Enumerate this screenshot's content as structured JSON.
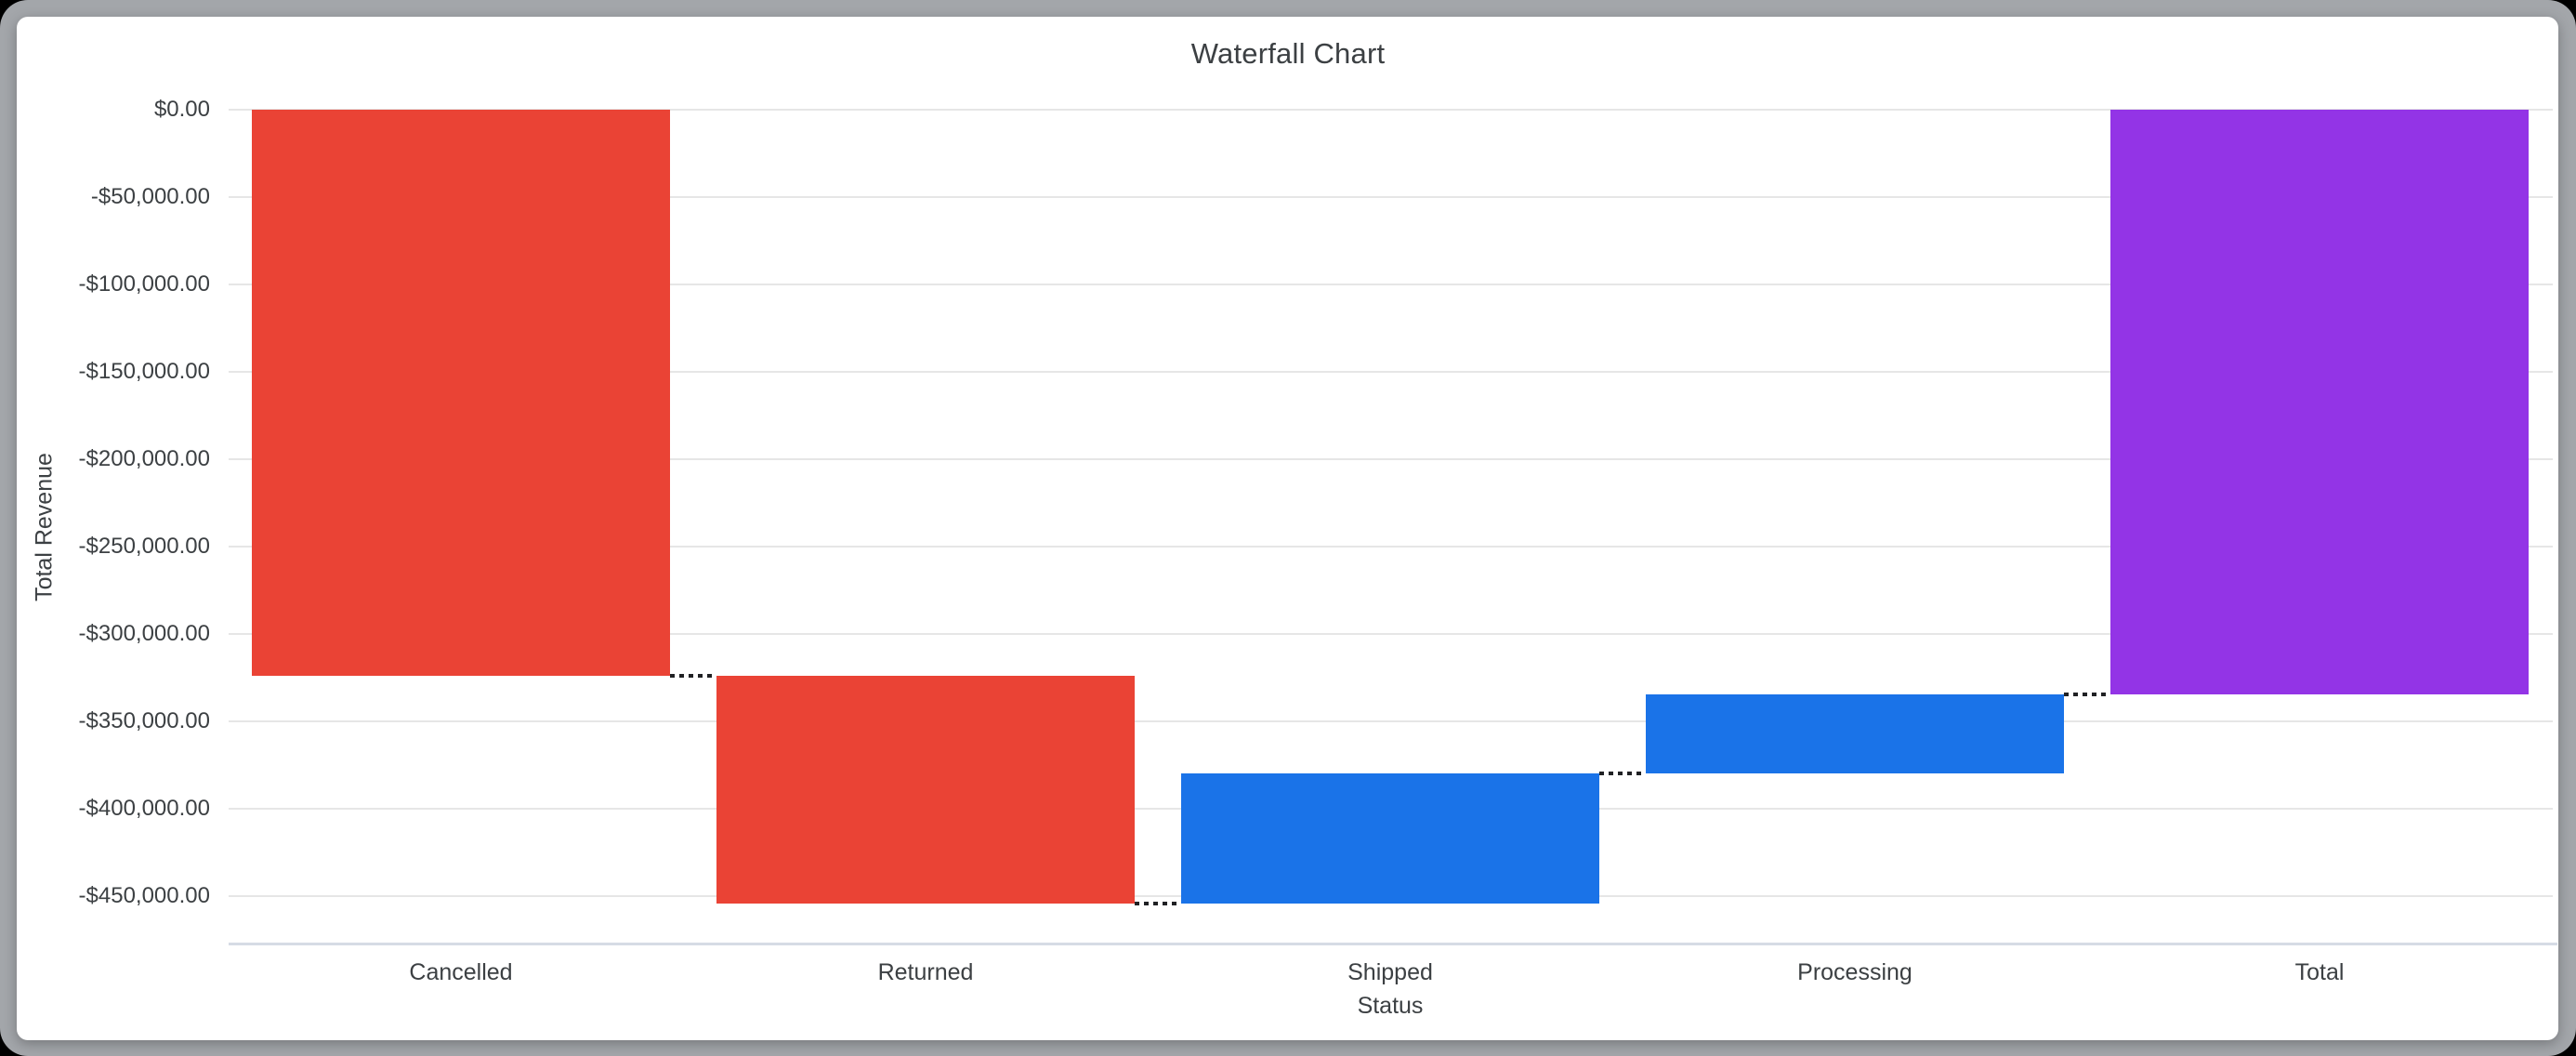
{
  "frame": {
    "background_color": "#000000",
    "border_color": "#A3A6AA",
    "card_color": "#FFFFFF"
  },
  "chart_data": {
    "type": "waterfall",
    "title": "Waterfall Chart",
    "xlabel": "Status",
    "ylabel": "Total Revenue",
    "categories": [
      "Cancelled",
      "Returned",
      "Shipped",
      "Processing",
      "Total"
    ],
    "values": [
      -323700,
      -130400,
      74100,
      45300,
      -334700
    ],
    "kinds": [
      "decrease",
      "decrease",
      "increase",
      "increase",
      "total"
    ],
    "cumulative": [
      -323700,
      -454100,
      -380000,
      -334700,
      -334700
    ],
    "series": [
      {
        "name": "Cancelled",
        "delta": -323700,
        "running_total": -323700,
        "color_role": "decrease"
      },
      {
        "name": "Returned",
        "delta": -130400,
        "running_total": -454100,
        "color_role": "decrease"
      },
      {
        "name": "Shipped",
        "delta": 74100,
        "running_total": -380000,
        "color_role": "increase"
      },
      {
        "name": "Processing",
        "delta": 45300,
        "running_total": -334700,
        "color_role": "increase"
      },
      {
        "name": "Total",
        "delta": -334700,
        "running_total": -334700,
        "color_role": "total"
      }
    ],
    "y_ticks": [
      "$0.00",
      "-$50,000.00",
      "-$100,000.00",
      "-$150,000.00",
      "-$200,000.00",
      "-$250,000.00",
      "-$300,000.00",
      "-$350,000.00",
      "-$400,000.00",
      "-$450,000.00"
    ],
    "y_tick_values": [
      0,
      -50000,
      -100000,
      -150000,
      -200000,
      -250000,
      -300000,
      -350000,
      -400000,
      -450000
    ],
    "ylim": [
      -477500,
      0
    ],
    "grid": true,
    "legend": "none",
    "connector_style": "dotted",
    "colors": {
      "decrease": "#EA4335",
      "increase": "#1A73E8",
      "total": "#9334E6",
      "connector": "#202124",
      "gridline": "#E6E6E6",
      "axis_line": "#D6DBE5",
      "text": "#3C4043"
    }
  }
}
